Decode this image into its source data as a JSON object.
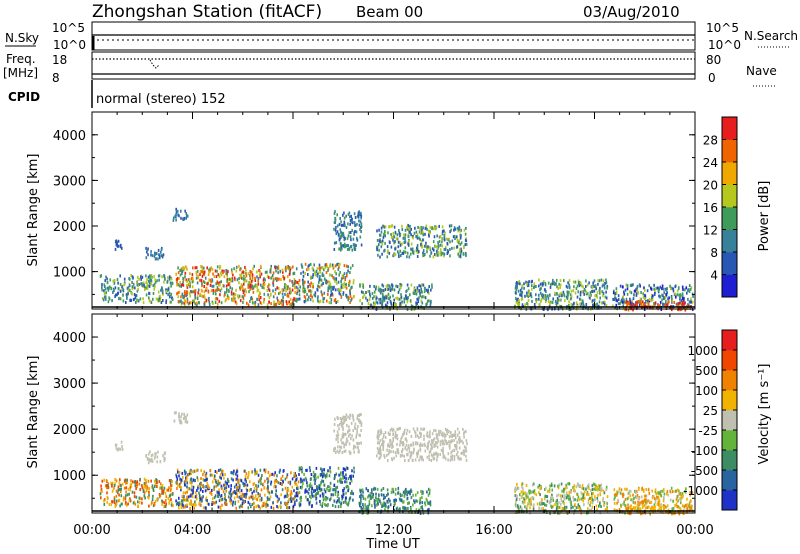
{
  "header": {
    "station": "Zhongshan Station (fitACF)",
    "beam": "Beam 00",
    "date": "03/Aug/2010"
  },
  "status_panels": {
    "nsky_label": "N.Sky",
    "nsky_ticks": [
      "10^5",
      "10^0"
    ],
    "nsearch_label": "N.Search",
    "nsearch_ticks": [
      "10^5",
      "10^0"
    ],
    "freq_label": "Freq.",
    "freq_unit": "[MHz]",
    "freq_ticks": [
      "18",
      "8"
    ],
    "nave_label": "Nave",
    "nave_ticks": [
      "80",
      "0"
    ],
    "cpid_label": "CPID",
    "cpid_text": "normal (stereo) 152"
  },
  "chart_data": [
    {
      "type": "heatmap",
      "name": "power",
      "ylabel": "Slant Range [km]",
      "xlabel": "Time UT",
      "xlim": [
        "00:00",
        "24:00"
      ],
      "ylim": [
        180,
        4500
      ],
      "yticks": [
        1000,
        2000,
        3000,
        4000
      ],
      "colorbar": {
        "label": "Power [dB]",
        "ticks": [
          "4",
          "8",
          "12",
          "16",
          "20",
          "24",
          "28"
        ],
        "colors": [
          "#1e1ed2",
          "#2858b4",
          "#37829a",
          "#3f9b5a",
          "#b4c81e",
          "#f0a800",
          "#f06400",
          "#e61e1e"
        ]
      },
      "regions": [
        {
          "t0": 0.3,
          "t1": 3.2,
          "r0": 350,
          "r1": 950,
          "c": [
            1,
            2,
            3,
            4
          ]
        },
        {
          "t0": 3.3,
          "t1": 8.2,
          "r0": 300,
          "r1": 1150,
          "c": [
            3,
            4,
            5,
            6,
            7,
            2
          ]
        },
        {
          "t0": 8.2,
          "t1": 10.4,
          "r0": 350,
          "r1": 1200,
          "c": [
            1,
            2,
            3,
            4,
            6
          ]
        },
        {
          "t0": 9.6,
          "t1": 10.7,
          "r0": 1500,
          "r1": 2350,
          "c": [
            1,
            2,
            3
          ]
        },
        {
          "t0": 11.3,
          "t1": 14.9,
          "r0": 1350,
          "r1": 2050,
          "c": [
            1,
            2,
            3,
            4
          ]
        },
        {
          "t0": 3.2,
          "t1": 3.8,
          "r0": 2150,
          "r1": 2400,
          "c": [
            1,
            2
          ]
        },
        {
          "t0": 0.9,
          "t1": 1.2,
          "r0": 1500,
          "r1": 1800,
          "c": [
            1
          ]
        },
        {
          "t0": 2.1,
          "t1": 2.9,
          "r0": 1300,
          "r1": 1550,
          "c": [
            1,
            2
          ]
        },
        {
          "t0": 10.6,
          "t1": 13.5,
          "r0": 200,
          "r1": 750,
          "c": [
            1,
            2,
            3,
            4
          ]
        },
        {
          "t0": 16.8,
          "t1": 20.5,
          "r0": 200,
          "r1": 850,
          "c": [
            1,
            2,
            3,
            4
          ]
        },
        {
          "t0": 20.7,
          "t1": 23.9,
          "r0": 200,
          "r1": 750,
          "c": [
            0,
            1,
            2,
            3,
            4
          ]
        },
        {
          "t0": 21.2,
          "t1": 23.9,
          "r0": 190,
          "r1": 380,
          "c": [
            6,
            7
          ]
        }
      ]
    },
    {
      "type": "heatmap",
      "name": "velocity",
      "ylabel": "Slant Range [km]",
      "xlabel": "Time UT",
      "xlim": [
        "00:00",
        "24:00"
      ],
      "ylim": [
        180,
        4500
      ],
      "yticks": [
        1000,
        2000,
        3000,
        4000
      ],
      "xticks": [
        "00:00",
        "04:00",
        "08:00",
        "12:00",
        "16:00",
        "20:00",
        "00:00"
      ],
      "colorbar": {
        "label": "Velocity [m s⁻¹]",
        "ticks": [
          "1000",
          "500",
          "100",
          "25",
          "-25",
          "-100",
          "-500",
          "-1000"
        ],
        "colors": [
          "#1e32c8",
          "#2864a0",
          "#3c8c64",
          "#64b43c",
          "#c0c0b0",
          "#f0b400",
          "#f08200",
          "#f04600",
          "#e61e1e"
        ]
      },
      "regions": [
        {
          "t0": 0.3,
          "t1": 3.2,
          "r0": 350,
          "r1": 950,
          "c": [
            6,
            5,
            7,
            2
          ]
        },
        {
          "t0": 3.3,
          "t1": 8.2,
          "r0": 300,
          "r1": 1150,
          "c": [
            0,
            1,
            2,
            6,
            5
          ]
        },
        {
          "t0": 8.2,
          "t1": 10.4,
          "r0": 350,
          "r1": 1200,
          "c": [
            0,
            1,
            2,
            3
          ]
        },
        {
          "t0": 9.6,
          "t1": 10.7,
          "r0": 1500,
          "r1": 2350,
          "c": [
            4
          ]
        },
        {
          "t0": 11.3,
          "t1": 14.9,
          "r0": 1350,
          "r1": 2050,
          "c": [
            4
          ]
        },
        {
          "t0": 3.2,
          "t1": 3.8,
          "r0": 2150,
          "r1": 2400,
          "c": [
            4
          ]
        },
        {
          "t0": 0.9,
          "t1": 1.2,
          "r0": 1500,
          "r1": 1800,
          "c": [
            4
          ]
        },
        {
          "t0": 2.1,
          "t1": 2.9,
          "r0": 1300,
          "r1": 1550,
          "c": [
            4
          ]
        },
        {
          "t0": 10.6,
          "t1": 13.5,
          "r0": 200,
          "r1": 750,
          "c": [
            1,
            2,
            3
          ]
        },
        {
          "t0": 16.8,
          "t1": 20.5,
          "r0": 200,
          "r1": 850,
          "c": [
            5,
            3,
            2,
            4
          ]
        },
        {
          "t0": 20.7,
          "t1": 23.9,
          "r0": 200,
          "r1": 750,
          "c": [
            5,
            6,
            4,
            3
          ]
        },
        {
          "t0": 21.2,
          "t1": 23.9,
          "r0": 190,
          "r1": 380,
          "c": [
            5,
            6
          ]
        }
      ]
    }
  ]
}
